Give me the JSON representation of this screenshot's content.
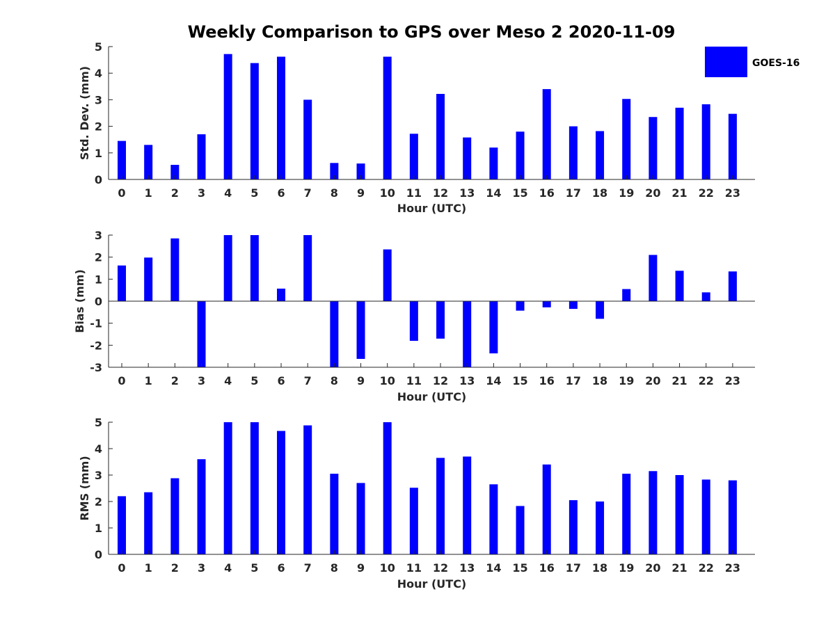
{
  "title": "Weekly Comparison to GPS over Meso 2 2020-11-09",
  "legend": {
    "label": "GOES-16",
    "color": "#0000ff",
    "placement": "top-right"
  },
  "chart_data": [
    {
      "type": "bar",
      "name": "stddev",
      "ylabel": "Std. Dev. (mm)",
      "xlabel": "Hour (UTC)",
      "ylim": [
        0,
        5
      ],
      "yticks": [
        0,
        1,
        2,
        3,
        4,
        5
      ],
      "categories": [
        "0",
        "1",
        "2",
        "3",
        "4",
        "5",
        "6",
        "7",
        "8",
        "9",
        "10",
        "11",
        "12",
        "13",
        "14",
        "15",
        "16",
        "17",
        "18",
        "19",
        "20",
        "21",
        "22",
        "23"
      ],
      "series": [
        {
          "name": "GOES-16",
          "values": [
            1.45,
            1.3,
            0.55,
            1.7,
            4.72,
            4.38,
            4.62,
            3.0,
            0.62,
            0.6,
            4.62,
            1.72,
            3.22,
            1.58,
            1.2,
            1.8,
            3.4,
            2.0,
            1.82,
            3.03,
            2.35,
            2.7,
            2.83,
            2.47
          ]
        }
      ]
    },
    {
      "type": "bar",
      "name": "bias",
      "ylabel": "Bias (mm)",
      "xlabel": "Hour (UTC)",
      "ylim": [
        -3,
        3
      ],
      "yticks": [
        -3,
        -2,
        -1,
        0,
        1,
        2,
        3
      ],
      "categories": [
        "0",
        "1",
        "2",
        "3",
        "4",
        "5",
        "6",
        "7",
        "8",
        "9",
        "10",
        "11",
        "12",
        "13",
        "14",
        "15",
        "16",
        "17",
        "18",
        "19",
        "20",
        "21",
        "22",
        "23"
      ],
      "series": [
        {
          "name": "GOES-16",
          "values": [
            1.62,
            1.98,
            2.85,
            -3.0,
            3.0,
            3.0,
            0.57,
            3.0,
            -3.0,
            -2.62,
            2.35,
            -1.8,
            -1.7,
            -3.0,
            -2.37,
            -0.43,
            -0.28,
            -0.35,
            -0.8,
            0.55,
            2.1,
            1.38,
            0.4,
            1.35
          ]
        }
      ]
    },
    {
      "type": "bar",
      "name": "rms",
      "ylabel": "RMS (mm)",
      "xlabel": "Hour (UTC)",
      "ylim": [
        0,
        5
      ],
      "yticks": [
        0,
        1,
        2,
        3,
        4,
        5
      ],
      "categories": [
        "0",
        "1",
        "2",
        "3",
        "4",
        "5",
        "6",
        "7",
        "8",
        "9",
        "10",
        "11",
        "12",
        "13",
        "14",
        "15",
        "16",
        "17",
        "18",
        "19",
        "20",
        "21",
        "22",
        "23"
      ],
      "series": [
        {
          "name": "GOES-16",
          "values": [
            2.2,
            2.35,
            2.88,
            3.6,
            5.0,
            5.0,
            4.67,
            4.88,
            3.05,
            2.7,
            5.0,
            2.52,
            3.65,
            3.7,
            2.65,
            1.83,
            3.4,
            2.05,
            2.0,
            3.05,
            3.15,
            3.0,
            2.83,
            2.8
          ]
        }
      ]
    }
  ]
}
